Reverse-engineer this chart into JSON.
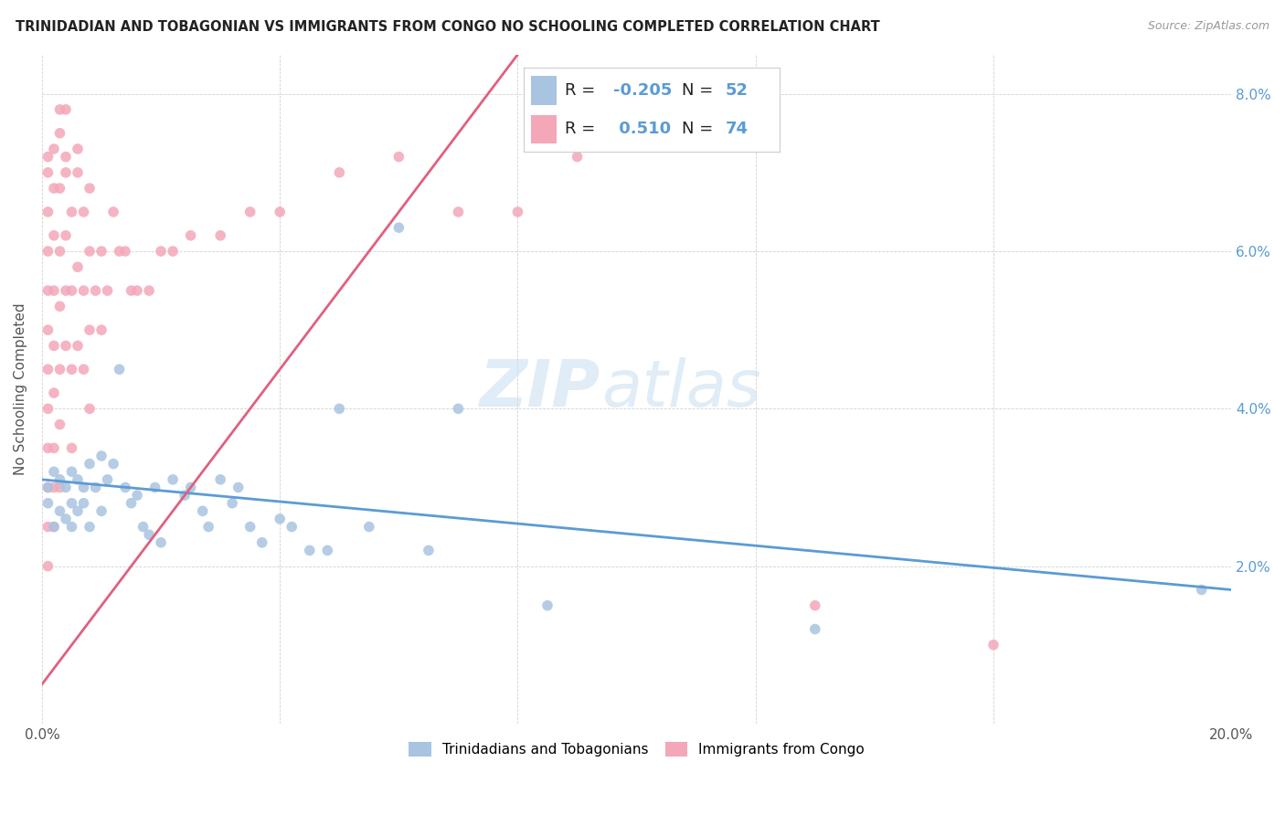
{
  "title": "TRINIDADIAN AND TOBAGONIAN VS IMMIGRANTS FROM CONGO NO SCHOOLING COMPLETED CORRELATION CHART",
  "source": "Source: ZipAtlas.com",
  "ylabel": "No Schooling Completed",
  "xlim": [
    0.0,
    0.2
  ],
  "ylim": [
    0.0,
    0.085
  ],
  "xtick_vals": [
    0.0,
    0.04,
    0.08,
    0.12,
    0.16,
    0.2
  ],
  "xtick_labels": [
    "0.0%",
    "",
    "",
    "",
    "",
    "20.0%"
  ],
  "ytick_vals": [
    0.0,
    0.02,
    0.04,
    0.06,
    0.08
  ],
  "ytick_labels": [
    "",
    "2.0%",
    "4.0%",
    "6.0%",
    "8.0%"
  ],
  "blue_color": "#a8c4e0",
  "pink_color": "#f4a7b9",
  "blue_line_color": "#5b9bd5",
  "pink_line_color": "#e06080",
  "legend_r_blue": "-0.205",
  "legend_n_blue": "52",
  "legend_r_pink": "0.510",
  "legend_n_pink": "74",
  "watermark_zip": "ZIP",
  "watermark_atlas": "atlas",
  "blue_scatter_x": [
    0.001,
    0.001,
    0.002,
    0.002,
    0.003,
    0.003,
    0.004,
    0.004,
    0.005,
    0.005,
    0.005,
    0.006,
    0.006,
    0.007,
    0.007,
    0.008,
    0.008,
    0.009,
    0.01,
    0.01,
    0.011,
    0.012,
    0.013,
    0.014,
    0.015,
    0.016,
    0.017,
    0.018,
    0.019,
    0.02,
    0.022,
    0.024,
    0.025,
    0.027,
    0.028,
    0.03,
    0.032,
    0.033,
    0.035,
    0.037,
    0.04,
    0.042,
    0.045,
    0.048,
    0.05,
    0.055,
    0.06,
    0.065,
    0.07,
    0.085,
    0.13,
    0.195
  ],
  "blue_scatter_y": [
    0.03,
    0.028,
    0.032,
    0.025,
    0.031,
    0.027,
    0.03,
    0.026,
    0.032,
    0.028,
    0.025,
    0.031,
    0.027,
    0.03,
    0.028,
    0.033,
    0.025,
    0.03,
    0.034,
    0.027,
    0.031,
    0.033,
    0.045,
    0.03,
    0.028,
    0.029,
    0.025,
    0.024,
    0.03,
    0.023,
    0.031,
    0.029,
    0.03,
    0.027,
    0.025,
    0.031,
    0.028,
    0.03,
    0.025,
    0.023,
    0.026,
    0.025,
    0.022,
    0.022,
    0.04,
    0.025,
    0.063,
    0.022,
    0.04,
    0.015,
    0.012,
    0.017
  ],
  "pink_scatter_x": [
    0.001,
    0.001,
    0.001,
    0.001,
    0.001,
    0.001,
    0.001,
    0.001,
    0.001,
    0.001,
    0.001,
    0.001,
    0.002,
    0.002,
    0.002,
    0.002,
    0.002,
    0.002,
    0.002,
    0.002,
    0.002,
    0.003,
    0.003,
    0.003,
    0.003,
    0.003,
    0.003,
    0.003,
    0.004,
    0.004,
    0.004,
    0.004,
    0.004,
    0.005,
    0.005,
    0.005,
    0.005,
    0.006,
    0.006,
    0.006,
    0.007,
    0.007,
    0.007,
    0.008,
    0.008,
    0.008,
    0.009,
    0.01,
    0.01,
    0.011,
    0.012,
    0.013,
    0.014,
    0.015,
    0.016,
    0.018,
    0.02,
    0.022,
    0.025,
    0.03,
    0.035,
    0.04,
    0.05,
    0.06,
    0.07,
    0.08,
    0.09,
    0.1,
    0.13,
    0.16,
    0.003,
    0.004,
    0.006,
    0.008
  ],
  "pink_scatter_y": [
    0.07,
    0.072,
    0.065,
    0.06,
    0.055,
    0.05,
    0.045,
    0.04,
    0.035,
    0.03,
    0.025,
    0.02,
    0.073,
    0.068,
    0.062,
    0.055,
    0.048,
    0.042,
    0.035,
    0.03,
    0.025,
    0.075,
    0.068,
    0.06,
    0.053,
    0.045,
    0.038,
    0.03,
    0.078,
    0.07,
    0.062,
    0.055,
    0.048,
    0.065,
    0.055,
    0.045,
    0.035,
    0.07,
    0.058,
    0.048,
    0.065,
    0.055,
    0.045,
    0.06,
    0.05,
    0.04,
    0.055,
    0.06,
    0.05,
    0.055,
    0.065,
    0.06,
    0.06,
    0.055,
    0.055,
    0.055,
    0.06,
    0.06,
    0.062,
    0.062,
    0.065,
    0.065,
    0.07,
    0.072,
    0.065,
    0.065,
    0.072,
    0.075,
    0.015,
    0.01,
    0.078,
    0.072,
    0.073,
    0.068
  ],
  "blue_line_x0": 0.0,
  "blue_line_y0": 0.031,
  "blue_line_x1": 0.2,
  "blue_line_y1": 0.017,
  "pink_line_x0": 0.0,
  "pink_line_y0": 0.005,
  "pink_line_x1": 0.08,
  "pink_line_y1": 0.085
}
